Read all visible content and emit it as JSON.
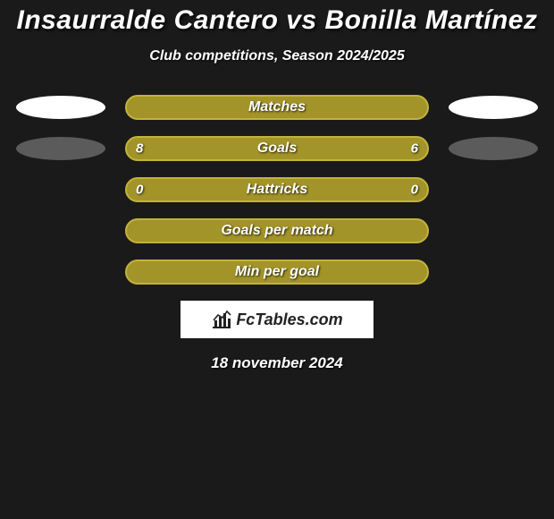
{
  "title": "Insaurralde Cantero vs Bonilla Martínez",
  "subtitle": "Club competitions, Season 2024/2025",
  "date": "18 november 2024",
  "colors": {
    "bar_fill": "#a39429",
    "bar_border": "#c3b23b",
    "ellipse_grey": "#5b5b5b",
    "ellipse_white": "#ffffff",
    "background": "#1a1a1a"
  },
  "logo": {
    "text": "FcTables.com"
  },
  "rows": [
    {
      "label": "Matches",
      "left_val": "",
      "right_val": "",
      "left_ellipse": "white",
      "right_ellipse": "white"
    },
    {
      "label": "Goals",
      "left_val": "8",
      "right_val": "6",
      "left_ellipse": "grey",
      "right_ellipse": "grey"
    },
    {
      "label": "Hattricks",
      "left_val": "0",
      "right_val": "0",
      "left_ellipse": "none",
      "right_ellipse": "none"
    },
    {
      "label": "Goals per match",
      "left_val": "",
      "right_val": "",
      "left_ellipse": "none",
      "right_ellipse": "none"
    },
    {
      "label": "Min per goal",
      "left_val": "",
      "right_val": "",
      "left_ellipse": "none",
      "right_ellipse": "none"
    }
  ]
}
